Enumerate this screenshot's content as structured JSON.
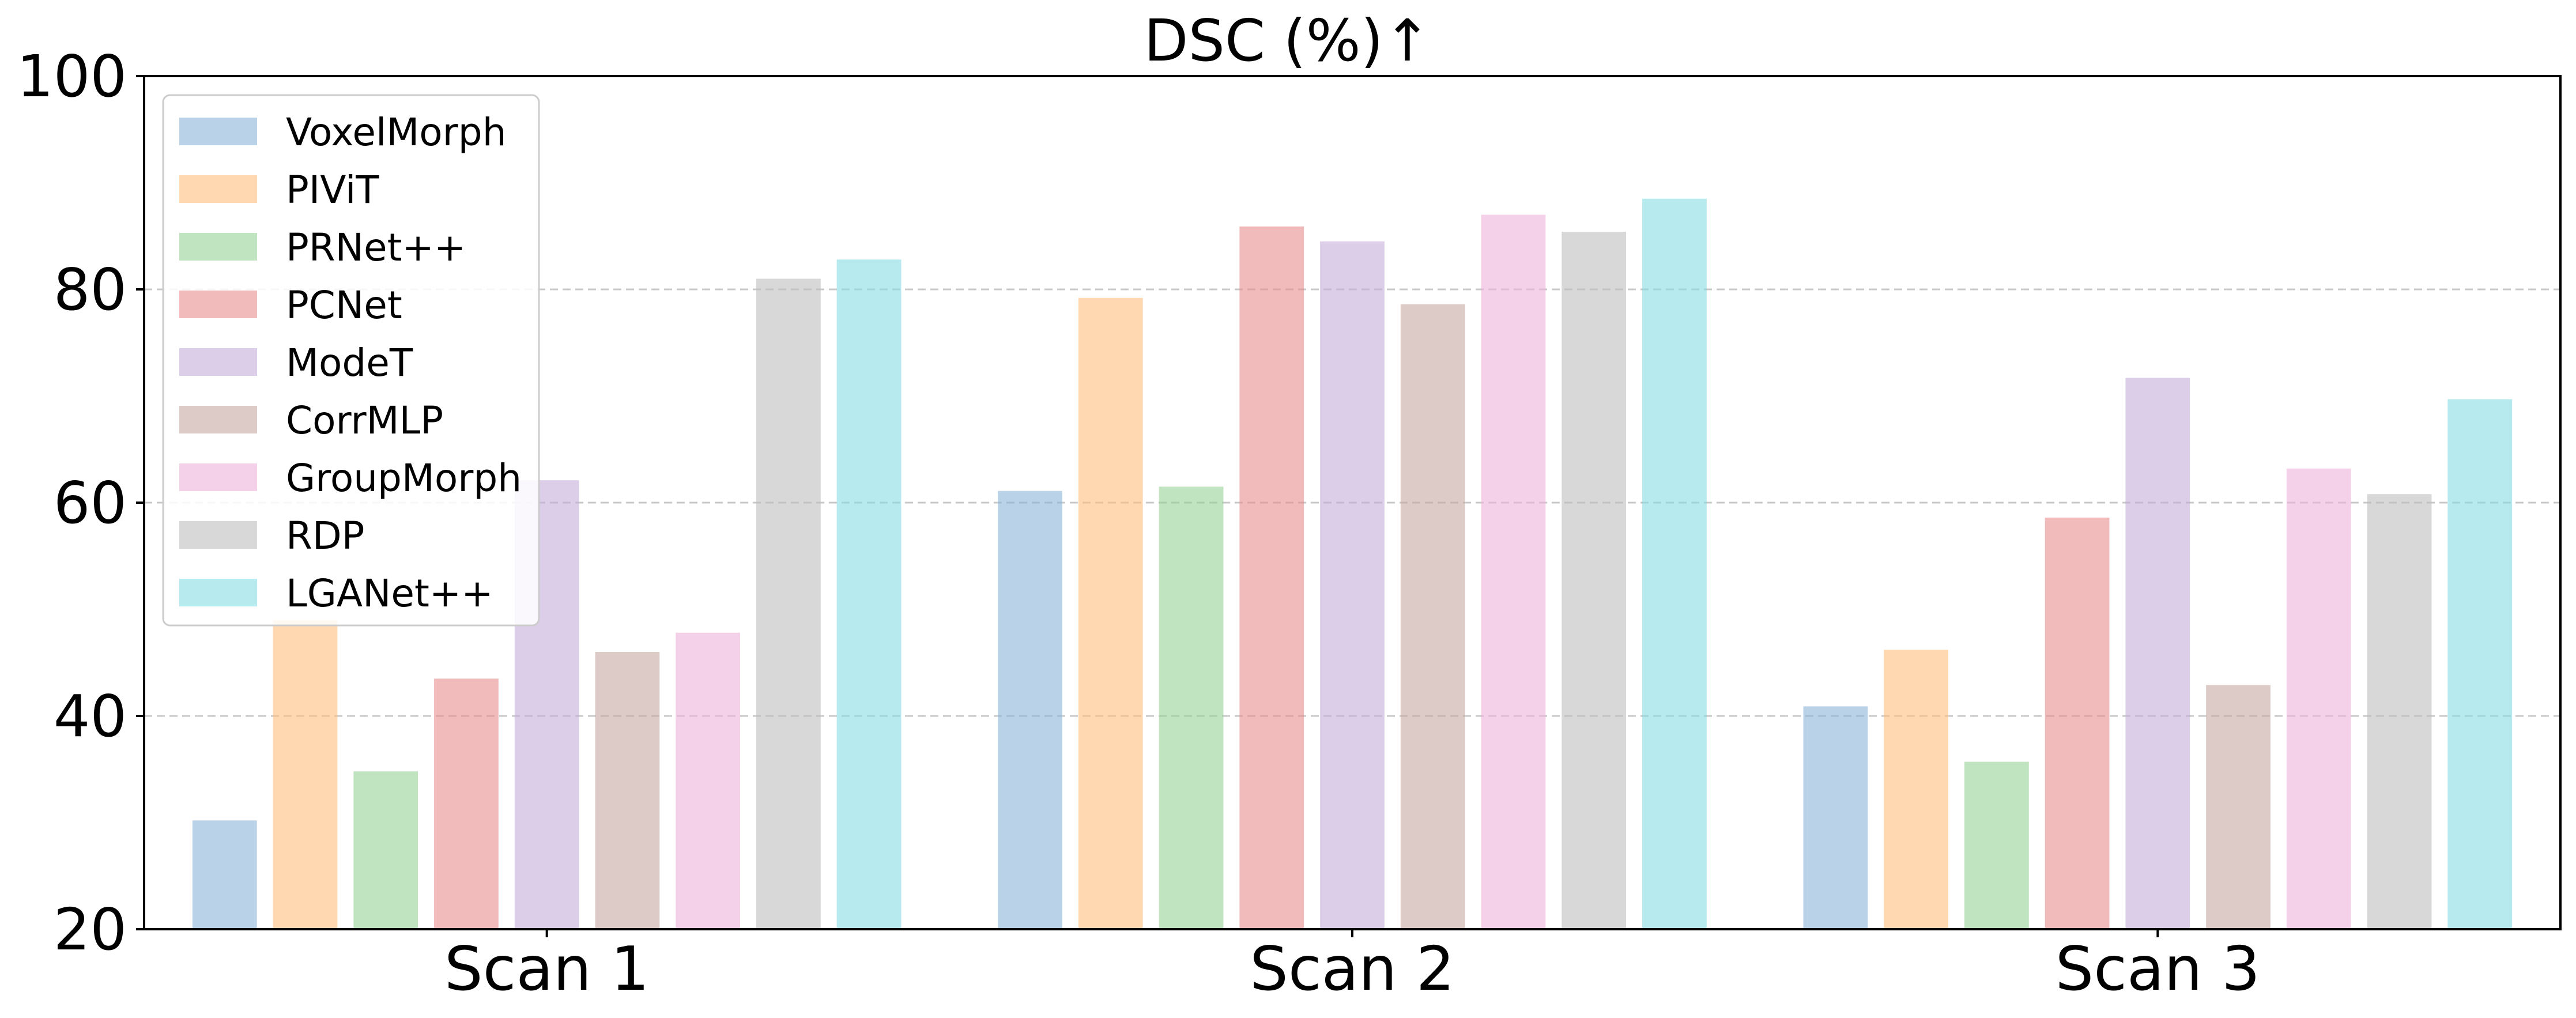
{
  "chart_data": {
    "type": "bar",
    "title": "DSC (%)↑",
    "xlabel": "",
    "ylabel": "",
    "categories": [
      "Scan 1",
      "Scan 2",
      "Scan 3"
    ],
    "ylim": [
      20,
      100
    ],
    "yticks": [
      20,
      40,
      60,
      80,
      100
    ],
    "grid": "y-dashed",
    "legend_position": "top-left",
    "bar_opacity": 0.6,
    "series": [
      {
        "name": "VoxelMorph",
        "color": "#8cb4d8",
        "values": [
          30.2,
          61.1,
          40.9
        ]
      },
      {
        "name": "PIViT",
        "color": "#ffbe7d",
        "values": [
          49.0,
          79.2,
          46.2
        ]
      },
      {
        "name": "PRNet++",
        "color": "#96d096",
        "values": [
          34.8,
          61.5,
          35.7
        ]
      },
      {
        "name": "PCNet",
        "color": "#e88e8f",
        "values": [
          43.5,
          85.9,
          58.6
        ]
      },
      {
        "name": "ModeT",
        "color": "#c5aedb",
        "values": [
          62.1,
          84.5,
          71.7
        ]
      },
      {
        "name": "CorrMLP",
        "color": "#c4a8a0",
        "values": [
          46.0,
          78.6,
          42.9
        ]
      },
      {
        "name": "GroupMorph",
        "color": "#efb2db",
        "values": [
          47.8,
          87.0,
          63.2
        ]
      },
      {
        "name": "RDP",
        "color": "#bebebe",
        "values": [
          81.0,
          85.4,
          60.8
        ]
      },
      {
        "name": "LGANet++",
        "color": "#86dce4",
        "values": [
          82.8,
          88.5,
          69.7
        ]
      }
    ]
  }
}
